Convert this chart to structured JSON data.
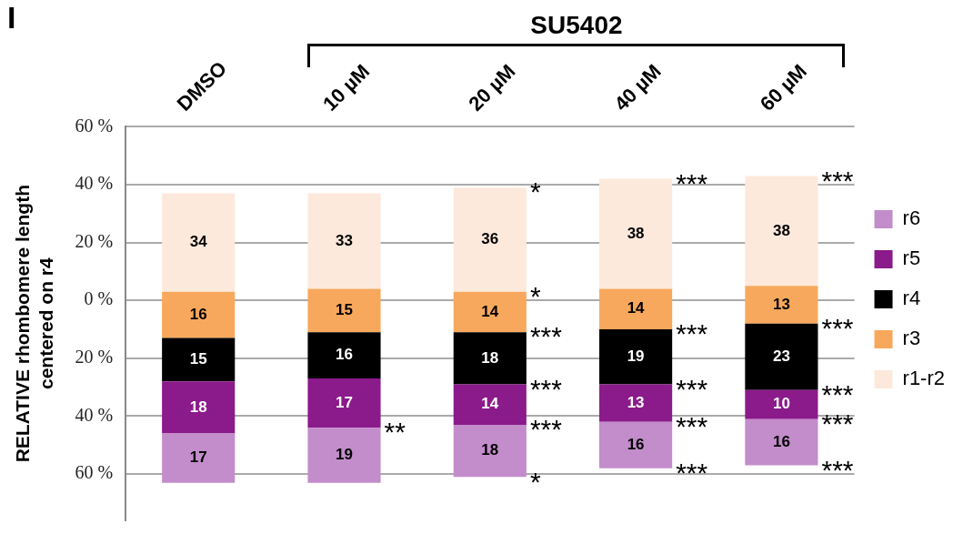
{
  "chart_data": {
    "type": "bar",
    "ylabel": "RELATIVE rhombomere length\ncentered on r4",
    "categories": [
      "DMSO",
      "10 µM",
      "20 µM",
      "40 µM",
      "60 µM"
    ],
    "series": [
      {
        "name": "r6",
        "color": "#c38ccb",
        "base": [
          -63,
          -63,
          -61,
          -58,
          -57
        ],
        "values": [
          17,
          19,
          18,
          16,
          16
        ]
      },
      {
        "name": "r5",
        "color": "#8b1a8b",
        "base": [
          -46,
          -44,
          -43,
          -42,
          -41
        ],
        "values": [
          18,
          17,
          14,
          13,
          10
        ]
      },
      {
        "name": "r4",
        "color": "#000000",
        "base": [
          -28,
          -27,
          -29,
          -29,
          -31
        ],
        "values": [
          15,
          16,
          18,
          19,
          23
        ]
      },
      {
        "name": "r3",
        "color": "#f8a85c",
        "base": [
          -13,
          -11,
          -11,
          -10,
          -8
        ],
        "values": [
          16,
          15,
          14,
          14,
          13
        ]
      },
      {
        "name": "r1-r2",
        "color": "#fde9dc",
        "base": [
          3,
          4,
          3,
          4,
          5
        ],
        "values": [
          34,
          33,
          36,
          38,
          38
        ]
      }
    ],
    "ylim": [
      -76,
      60
    ],
    "yticks": [
      {
        "value": -60,
        "label": "60 %"
      },
      {
        "value": -40,
        "label": "40 %"
      },
      {
        "value": -20,
        "label": "20 %"
      },
      {
        "value": 0,
        "label": "0 %"
      },
      {
        "value": 20,
        "label": "20 %"
      },
      {
        "value": 40,
        "label": "40 %"
      },
      {
        "value": 60,
        "label": "60 %"
      }
    ],
    "grid": "y",
    "legend": "right",
    "data_labels": true,
    "annotations": [
      "I",
      "SU5402",
      {
        "text": "**",
        "x": "10 µM",
        "y": -44
      },
      {
        "text": "*",
        "x": "20 µM",
        "y": 39
      },
      {
        "text": "*",
        "x": "20 µM",
        "y": 3
      },
      {
        "text": "***",
        "x": "20 µM",
        "y": -11
      },
      {
        "text": "***",
        "x": "20 µM",
        "y": -29
      },
      {
        "text": "***",
        "x": "20 µM",
        "y": -43
      },
      {
        "text": "*",
        "x": "20 µM",
        "y": -61
      },
      {
        "text": "***",
        "x": "40 µM",
        "y": 42
      },
      {
        "text": "***",
        "x": "40 µM",
        "y": -10
      },
      {
        "text": "***",
        "x": "40 µM",
        "y": -29
      },
      {
        "text": "***",
        "x": "40 µM",
        "y": -42
      },
      {
        "text": "***",
        "x": "40 µM",
        "y": -58
      },
      {
        "text": "***",
        "x": "60 µM",
        "y": 43
      },
      {
        "text": "***",
        "x": "60 µM",
        "y": -8
      },
      {
        "text": "***",
        "x": "60 µM",
        "y": -31
      },
      {
        "text": "***",
        "x": "60 µM",
        "y": -41
      },
      {
        "text": "***",
        "x": "60 µM",
        "y": -57
      }
    ]
  }
}
